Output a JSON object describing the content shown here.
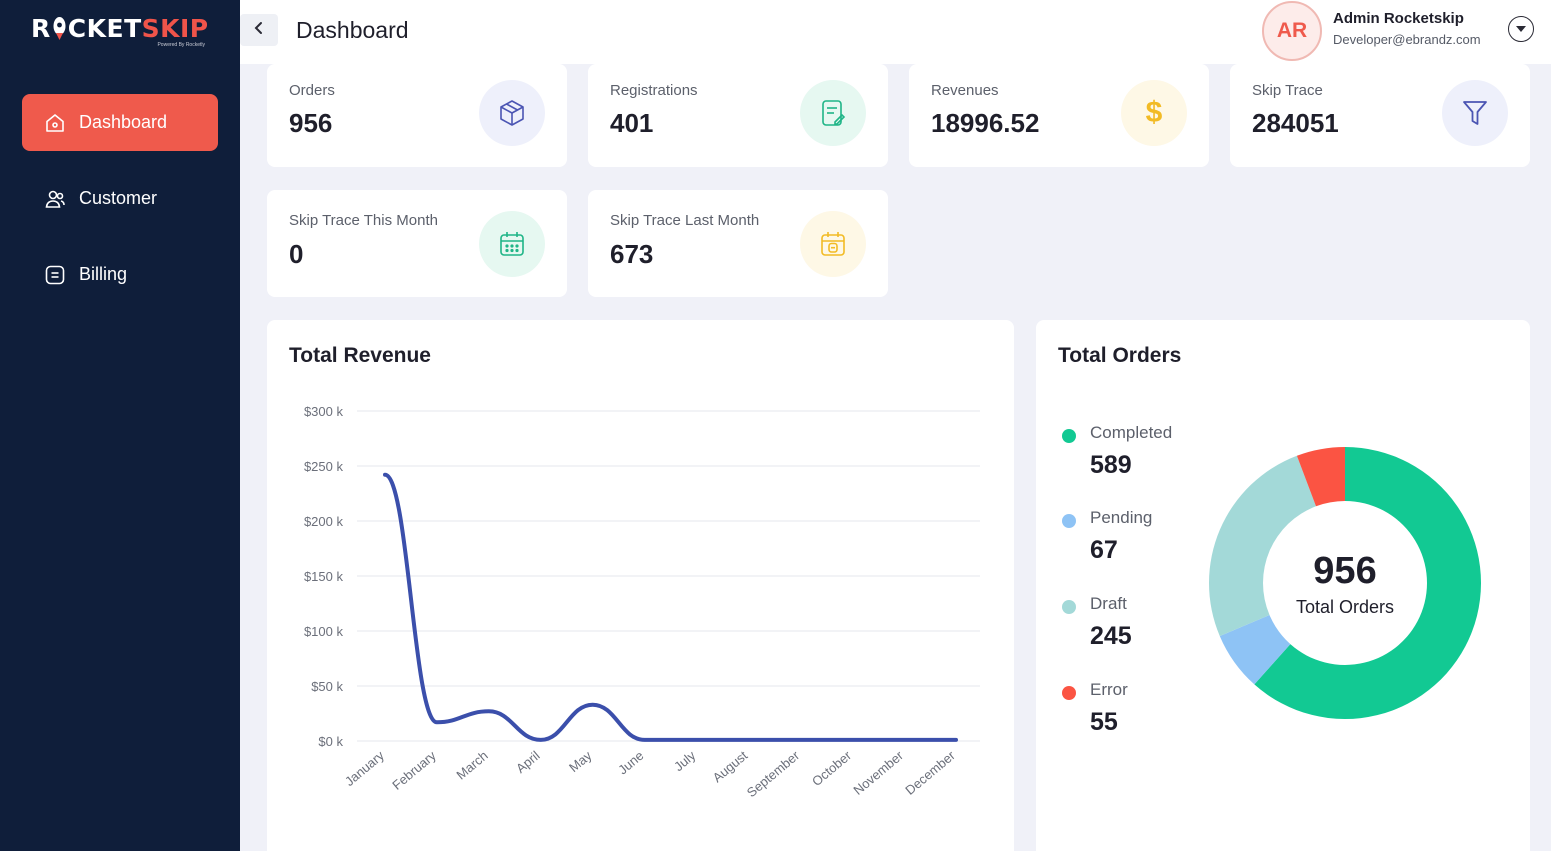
{
  "brand": {
    "logo_main": "R",
    "logo_rocket": "CKET",
    "logo_skip": "SKIP",
    "logo_sub": "Powered By Rocketly"
  },
  "sidebar": {
    "items": [
      {
        "label": "Dashboard",
        "icon": "home-icon",
        "active": true
      },
      {
        "label": "Customer",
        "icon": "users-icon",
        "active": false
      },
      {
        "label": "Billing",
        "icon": "billing-icon",
        "active": false
      }
    ]
  },
  "header": {
    "title": "Dashboard",
    "user": {
      "initials": "AR",
      "name": "Admin Rocketskip",
      "email": "Developer@ebrandz.com"
    }
  },
  "stats": [
    {
      "label": "Orders",
      "value": "956",
      "icon": "box-icon",
      "color": "#4b55b3"
    },
    {
      "label": "Registrations",
      "value": "401",
      "icon": "form-icon",
      "color": "#1fb587"
    },
    {
      "label": "Revenues",
      "value": "18996.52",
      "icon": "dollar-icon",
      "color": "#f2bb25"
    },
    {
      "label": "Skip Trace",
      "value": "284051",
      "icon": "funnel-icon",
      "color": "#4b55b3"
    },
    {
      "label": "Skip Trace This Month",
      "value": "0",
      "icon": "calendar-icon",
      "color": "#1fb587"
    },
    {
      "label": "Skip Trace Last Month",
      "value": "673",
      "icon": "calendar-month-icon",
      "color": "#f2bb25"
    }
  ],
  "revenue": {
    "title": "Total Revenue"
  },
  "orders": {
    "title": "Total Orders",
    "center_value": "956",
    "center_label": "Total Orders",
    "legend": [
      {
        "label": "Completed",
        "value": "589",
        "color": "#12c993"
      },
      {
        "label": "Pending",
        "value": "67",
        "color": "#8ec3f5"
      },
      {
        "label": "Draft",
        "value": "245",
        "color": "#a3d9d8"
      },
      {
        "label": "Error",
        "value": "55",
        "color": "#fb5443"
      }
    ]
  },
  "chart_data": [
    {
      "type": "line",
      "title": "Total Revenue",
      "categories": [
        "January",
        "February",
        "March",
        "April",
        "May",
        "June",
        "July",
        "August",
        "September",
        "October",
        "November",
        "December"
      ],
      "series": [
        {
          "values": [
            242000,
            17000,
            27000,
            1000,
            33000,
            1000,
            1000,
            1000,
            1000,
            1000,
            1000,
            1000
          ]
        }
      ],
      "yticks": [
        "$0 k",
        "$50 k",
        "$100 k",
        "$150 k",
        "$200 k",
        "$250 k",
        "$300 k"
      ],
      "ylim": [
        0,
        300000
      ],
      "color": "#3b4fab",
      "grid": true
    },
    {
      "type": "pie",
      "title": "Total Orders",
      "categories": [
        "Completed",
        "Pending",
        "Draft",
        "Error"
      ],
      "values": [
        589,
        67,
        245,
        55
      ],
      "colors": [
        "#12c993",
        "#8ec3f5",
        "#a3d9d8",
        "#fb5443"
      ]
    }
  ]
}
